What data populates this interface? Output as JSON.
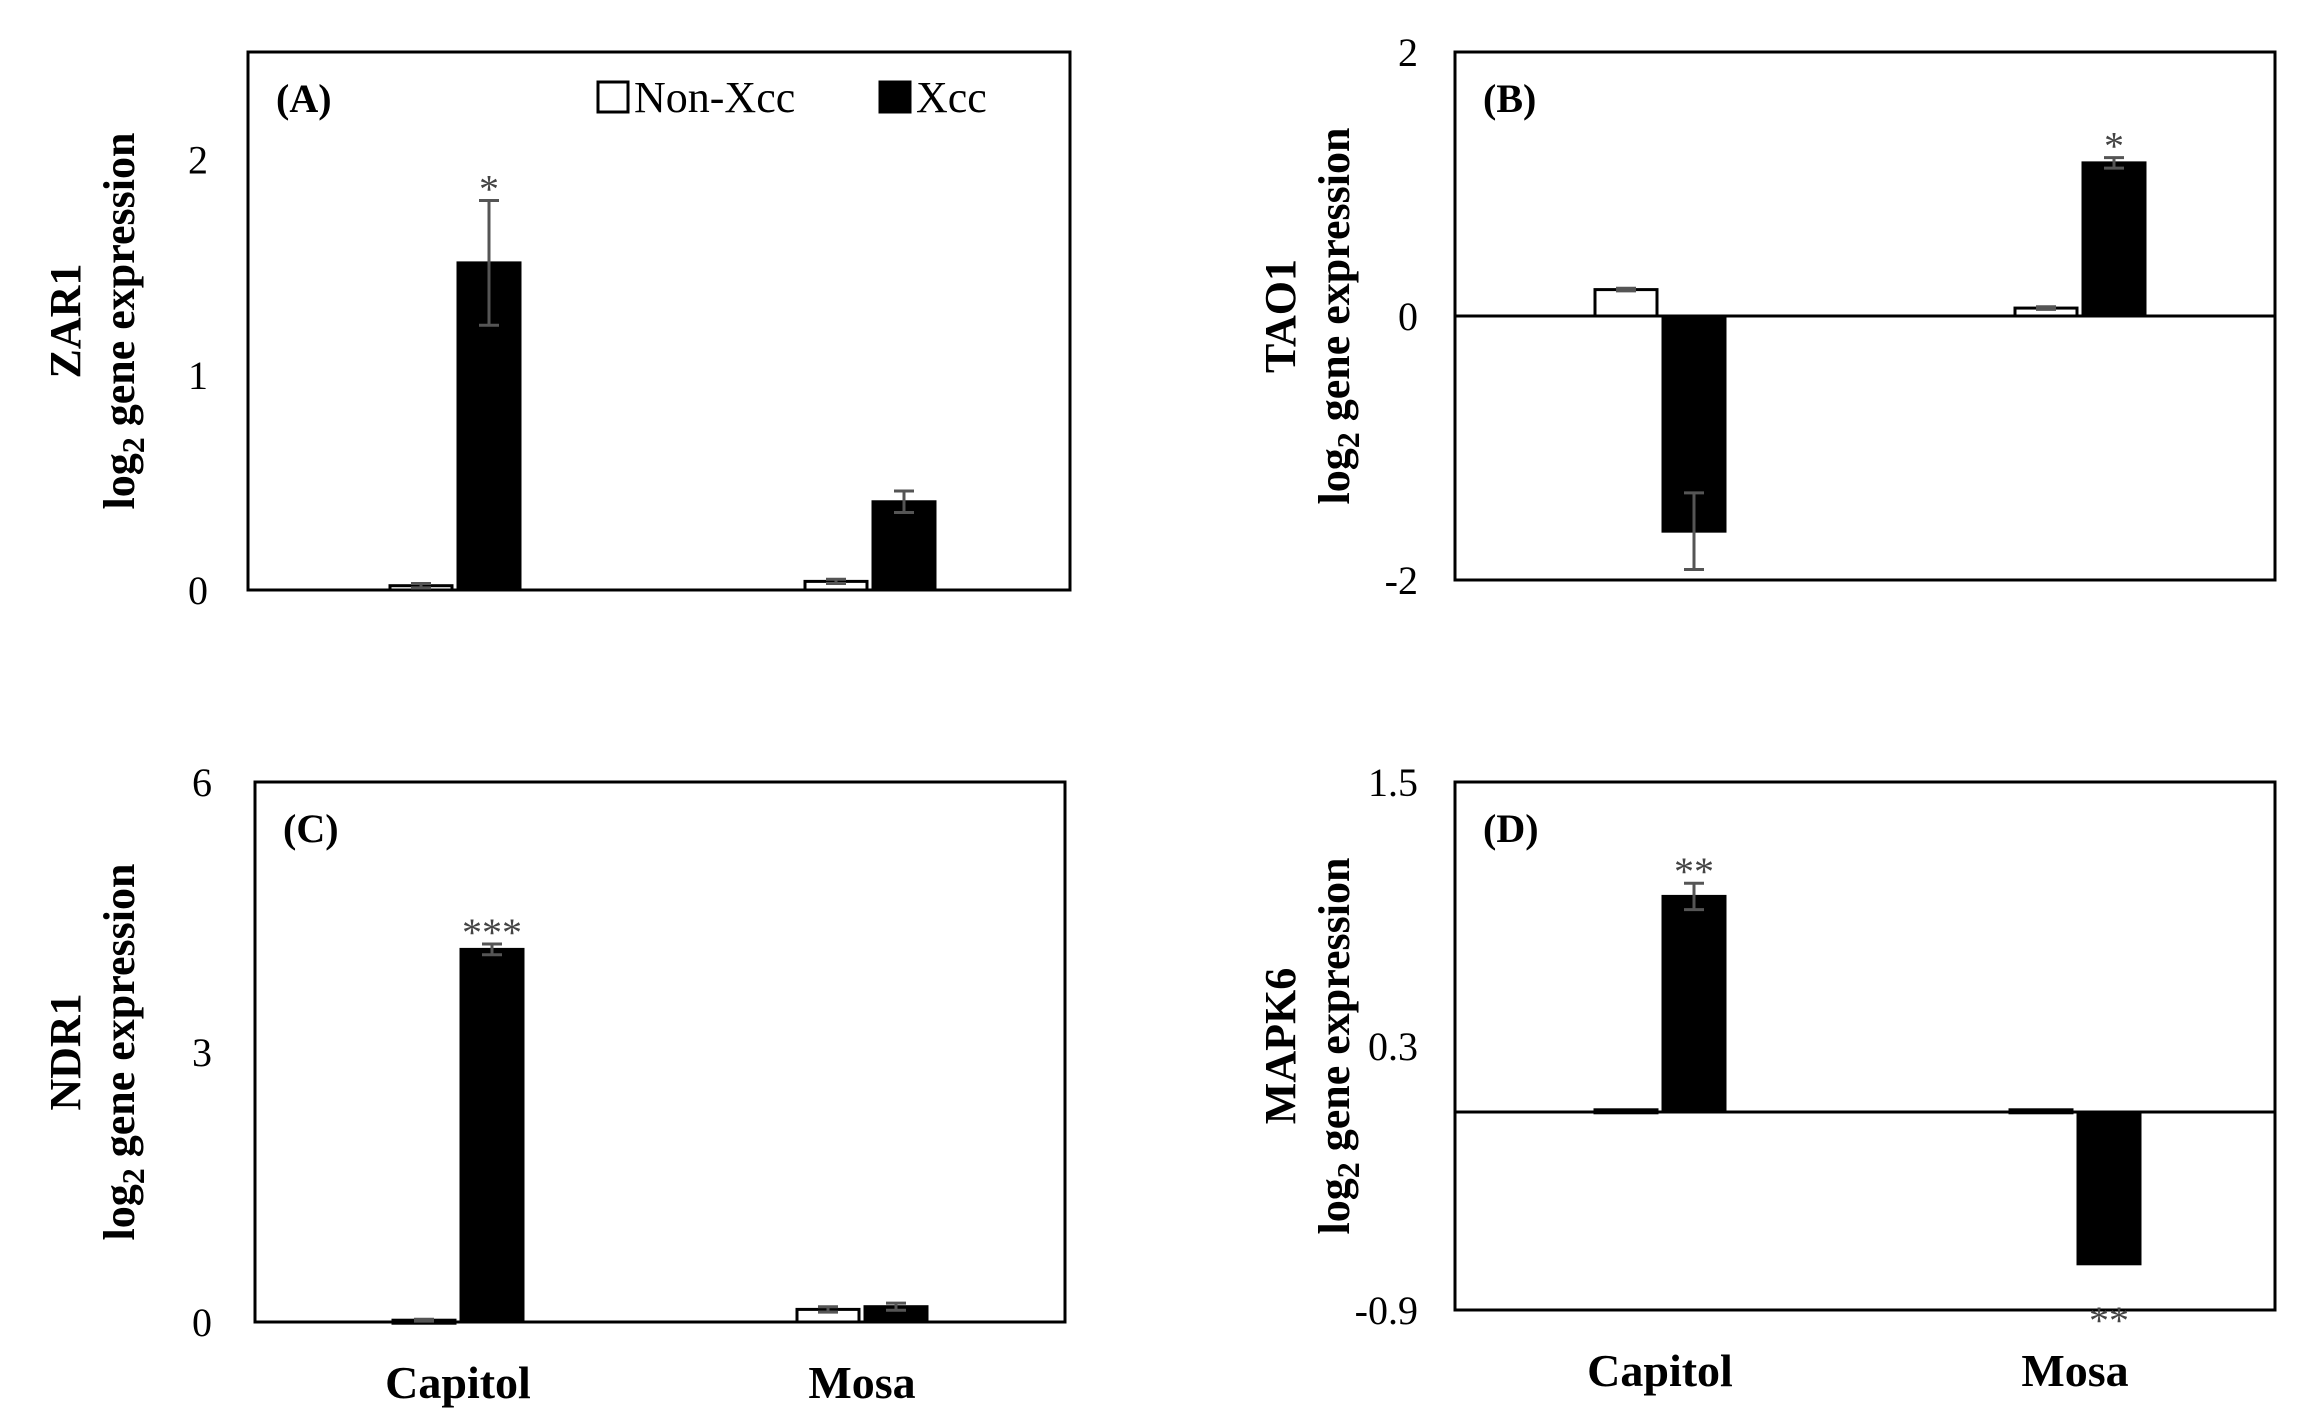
{
  "legend": {
    "series": [
      {
        "name": "Non-Xcc",
        "color": "#ffffff"
      },
      {
        "name": "Xcc",
        "color": "#000000"
      }
    ]
  },
  "colors": {
    "border": "#000000",
    "error_bar": "#555555",
    "significance": "#444444"
  },
  "chart_data": [
    {
      "panel": "(A)",
      "type": "bar",
      "gene": "ZAR1",
      "ylabel_sub": "log",
      "ylabel_subscript": "2",
      "ylabel_rest": " gene expression",
      "categories": [
        "Capitol",
        "Mosa"
      ],
      "show_category_labels": false,
      "ylim": [
        0,
        2.5
      ],
      "yticks": [
        {
          "v": 0,
          "label": "0"
        },
        {
          "v": 1,
          "label": "1"
        },
        {
          "v": 2,
          "label": "2"
        }
      ],
      "zero_line": false,
      "series": [
        {
          "name": "Non-Xcc",
          "values": [
            0.02,
            0.04
          ],
          "errors": [
            0.01,
            0.01
          ],
          "sig": [
            "",
            ""
          ]
        },
        {
          "name": "Xcc",
          "values": [
            1.52,
            0.41
          ],
          "errors": [
            0.29,
            0.05
          ],
          "sig": [
            "*",
            ""
          ]
        }
      ]
    },
    {
      "panel": "(B)",
      "type": "bar",
      "gene": "TAO1",
      "ylabel_sub": "log",
      "ylabel_subscript": "2",
      "ylabel_rest": " gene expression",
      "categories": [
        "Capitol",
        "Mosa"
      ],
      "show_category_labels": false,
      "ylim": [
        -2,
        2
      ],
      "yticks": [
        {
          "v": -2,
          "label": "-2"
        },
        {
          "v": 0,
          "label": "0"
        },
        {
          "v": 2,
          "label": "2"
        }
      ],
      "zero_line": true,
      "series": [
        {
          "name": "Non-Xcc",
          "values": [
            0.2,
            0.06
          ],
          "errors": [
            0.01,
            0.01
          ],
          "sig": [
            "",
            ""
          ]
        },
        {
          "name": "Xcc",
          "values": [
            -1.63,
            1.16
          ],
          "errors": [
            0.29,
            0.04
          ],
          "sig": [
            "",
            "*"
          ]
        }
      ]
    },
    {
      "panel": "(C)",
      "type": "bar",
      "gene": "NDR1",
      "ylabel_sub": "log",
      "ylabel_subscript": "2",
      "ylabel_rest": " gene expression",
      "categories": [
        "Capitol",
        "Mosa"
      ],
      "show_category_labels": true,
      "ylim": [
        0,
        6
      ],
      "yticks": [
        {
          "v": 0,
          "label": "0"
        },
        {
          "v": 3,
          "label": "3"
        },
        {
          "v": 6,
          "label": "6"
        }
      ],
      "zero_line": false,
      "series": [
        {
          "name": "Non-Xcc",
          "values": [
            0.02,
            0.14
          ],
          "errors": [
            0.01,
            0.03
          ],
          "sig": [
            "",
            ""
          ]
        },
        {
          "name": "Xcc",
          "values": [
            4.14,
            0.17
          ],
          "errors": [
            0.06,
            0.04
          ],
          "sig": [
            "***",
            ""
          ]
        }
      ]
    },
    {
      "panel": "(D)",
      "type": "bar",
      "gene": "MAPK6",
      "ylabel_sub": "log",
      "ylabel_subscript": "2",
      "ylabel_rest": " gene expression",
      "categories": [
        "Capitol",
        "Mosa"
      ],
      "show_category_labels": true,
      "ylim": [
        -0.9,
        1.5
      ],
      "yticks": [
        {
          "v": -0.9,
          "label": "-0.9"
        },
        {
          "v": 0.3,
          "label": "0.3"
        },
        {
          "v": 1.5,
          "label": "1.5"
        }
      ],
      "zero_line": true,
      "series": [
        {
          "name": "Non-Xcc",
          "values": [
            0.01,
            0.01
          ],
          "errors": [
            0.0,
            0.0
          ],
          "sig": [
            "",
            ""
          ]
        },
        {
          "name": "Xcc",
          "values": [
            0.98,
            -0.69
          ],
          "errors": [
            0.06,
            0.0
          ],
          "sig": [
            "**",
            "**"
          ]
        }
      ]
    }
  ]
}
